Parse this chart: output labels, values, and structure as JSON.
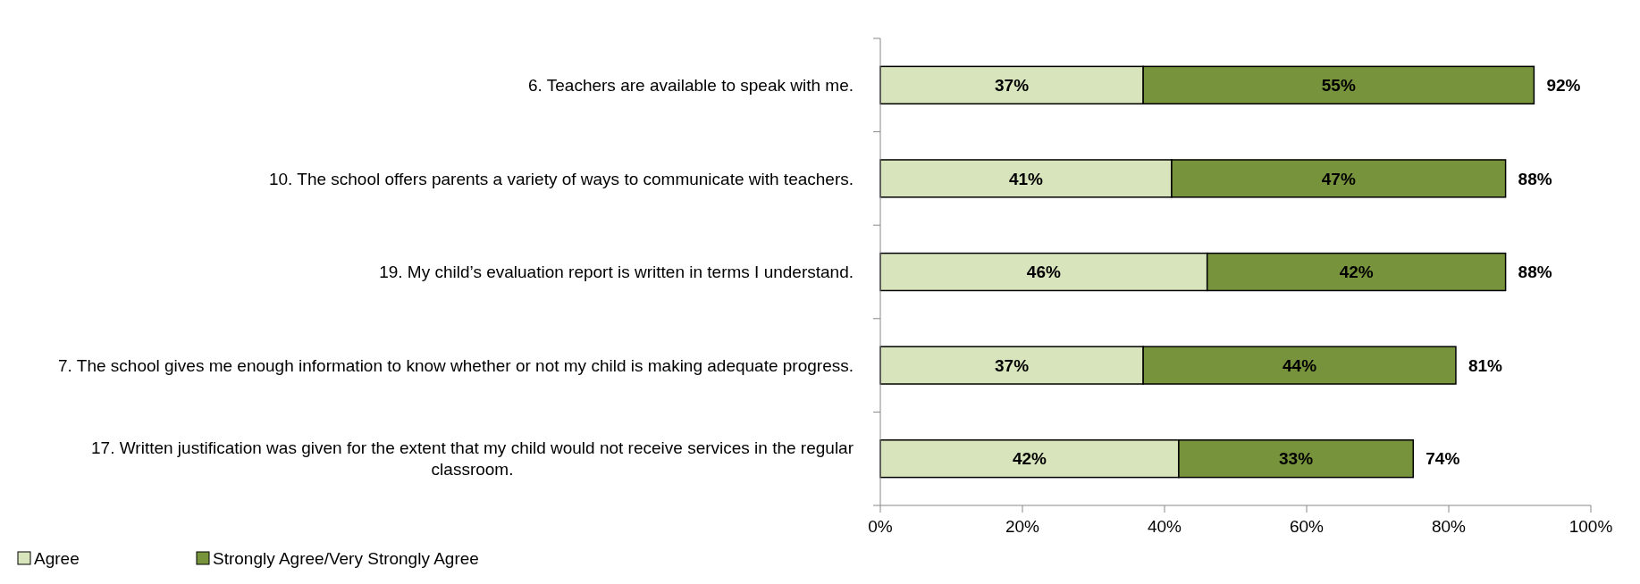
{
  "chart_data": {
    "type": "bar",
    "orientation": "horizontal",
    "stacked": true,
    "categories": [
      "6. Teachers are available to speak with me.",
      "10. The school offers parents a variety of ways to communicate with teachers.",
      "19. My child’s evaluation report is written in terms I understand.",
      "7. The school gives me enough information to know whether or not my child is making adequate progress.",
      "17. Written justification was given for the extent that my child would not receive services in the regular classroom."
    ],
    "series": [
      {
        "name": "Agree",
        "color": "#d8e4bc",
        "values": [
          37,
          41,
          46,
          37,
          42
        ],
        "value_labels": [
          "37%",
          "41%",
          "46%",
          "37%",
          "42%"
        ]
      },
      {
        "name": "Strongly Agree/Very Strongly Agree",
        "color": "#77933c",
        "values": [
          55,
          47,
          42,
          44,
          33
        ],
        "value_labels": [
          "55%",
          "47%",
          "42%",
          "44%",
          "33%"
        ]
      }
    ],
    "totals": [
      "92%",
      "88%",
      "88%",
      "81%",
      "74%"
    ],
    "xlim": [
      0,
      100
    ],
    "xticks": [
      {
        "value": 0,
        "label": "0%"
      },
      {
        "value": 20,
        "label": "20%"
      },
      {
        "value": 40,
        "label": "40%"
      },
      {
        "value": 60,
        "label": "60%"
      },
      {
        "value": 80,
        "label": "80%"
      },
      {
        "value": 100,
        "label": "100%"
      }
    ],
    "grid": false,
    "legend": "bottom left"
  }
}
